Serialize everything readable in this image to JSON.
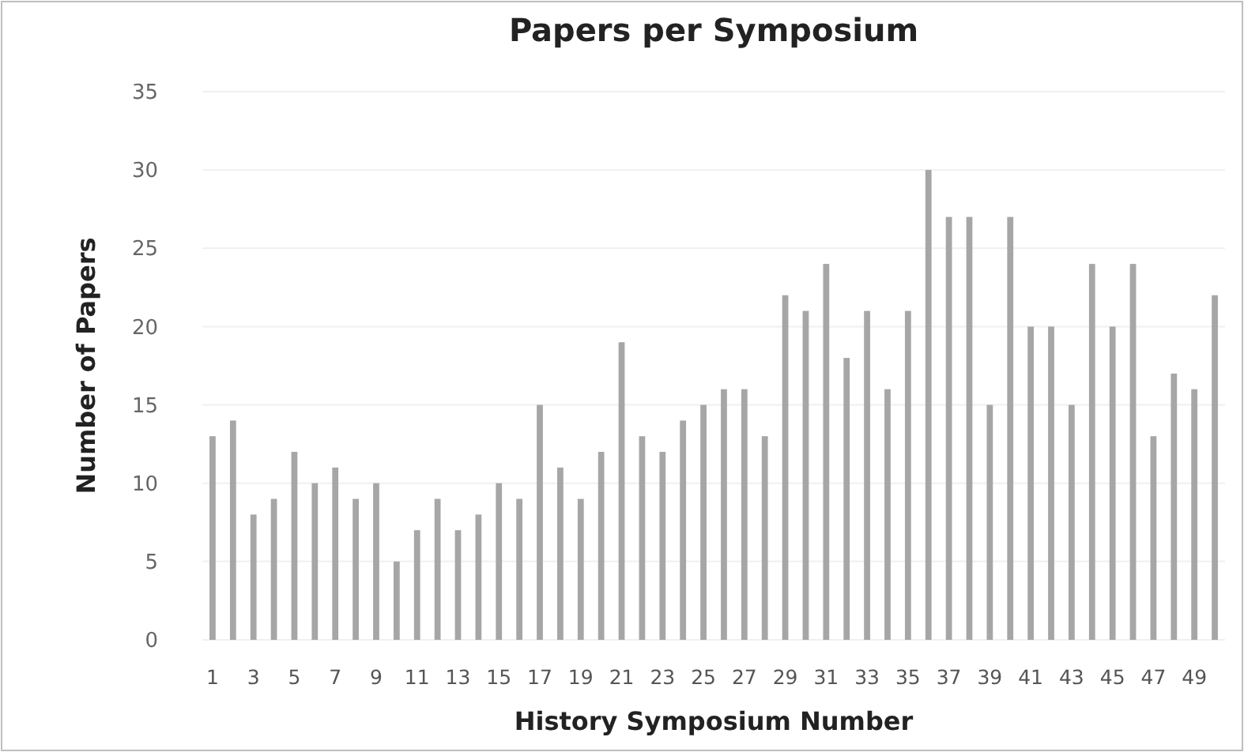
{
  "chart_data": {
    "type": "bar",
    "title": "Papers per Symposium",
    "xlabel": "History Symposium Number",
    "ylabel": "Number of Papers",
    "x": [
      1,
      2,
      3,
      4,
      5,
      6,
      7,
      8,
      9,
      10,
      11,
      12,
      13,
      14,
      15,
      16,
      17,
      18,
      19,
      20,
      21,
      22,
      23,
      24,
      25,
      26,
      27,
      28,
      29,
      30,
      31,
      32,
      33,
      34,
      35,
      36,
      37,
      38,
      39,
      40,
      41,
      42,
      43,
      44,
      45,
      46,
      47,
      48,
      49,
      50
    ],
    "values": [
      13,
      14,
      8,
      9,
      12,
      10,
      11,
      9,
      10,
      5,
      7,
      9,
      7,
      8,
      10,
      9,
      15,
      11,
      9,
      12,
      19,
      13,
      12,
      14,
      15,
      16,
      16,
      13,
      22,
      21,
      24,
      18,
      21,
      16,
      21,
      30,
      27,
      27,
      15,
      27,
      20,
      20,
      15,
      24,
      20,
      24,
      13,
      17,
      16,
      22
    ],
    "color": "#a6a6a6",
    "xlim": [
      0.5,
      50.5
    ],
    "xticks": [
      1,
      3,
      5,
      7,
      9,
      11,
      13,
      15,
      17,
      19,
      21,
      23,
      25,
      27,
      29,
      31,
      33,
      35,
      37,
      39,
      41,
      43,
      45,
      47,
      49
    ],
    "ylim": [
      0,
      35
    ],
    "yticks": [
      0,
      5,
      10,
      15,
      20,
      25,
      30,
      35
    ],
    "grid": "y"
  }
}
